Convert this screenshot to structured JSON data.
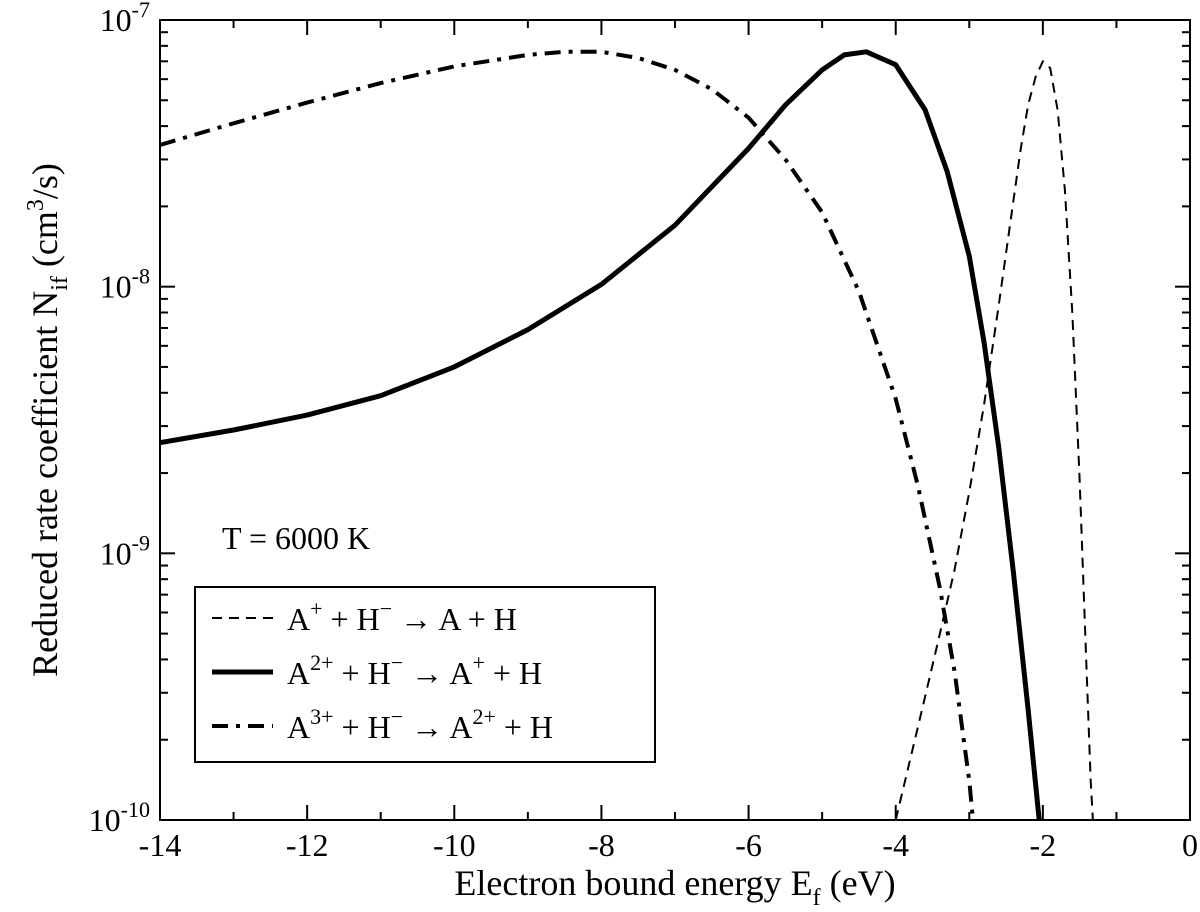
{
  "chart_data": {
    "type": "line",
    "xlabel": {
      "main": "Electron bound energy E",
      "sub": "f",
      "tail": " (eV)"
    },
    "ylabel": {
      "main": "Reduced rate coefficient N",
      "sub": "if",
      "mid": " (cm",
      "sup": "3",
      "tail": "/s)"
    },
    "annotation": "T = 6000 K",
    "xlim": [
      -14,
      0
    ],
    "ylim": [
      1e-10,
      1e-07
    ],
    "yscale": "log",
    "grid": false,
    "legend_position": "bottom-left",
    "xticks": [
      -14,
      -12,
      -10,
      -8,
      -6,
      -4,
      -2,
      0
    ],
    "xtick_labels": [
      "-14",
      "-12",
      "-10",
      "-8",
      "-6",
      "-4",
      "-2",
      "0"
    ],
    "yticks": [
      {
        "value": 1e-10,
        "base": "10",
        "exp": "-10"
      },
      {
        "value": 1e-09,
        "base": "10",
        "exp": "-9"
      },
      {
        "value": 1e-08,
        "base": "10",
        "exp": "-8"
      },
      {
        "value": 1e-07,
        "base": "10",
        "exp": "-7"
      }
    ],
    "series": [
      {
        "legend": [
          "A",
          "+",
          " + H",
          "−",
          " → A + H"
        ],
        "style": "dashed",
        "x": [
          -4.0,
          -3.8,
          -3.6,
          -3.4,
          -3.2,
          -3.0,
          -2.8,
          -2.6,
          -2.4,
          -2.3,
          -2.2,
          -2.1,
          -2.0,
          -1.9,
          -1.8,
          -1.7,
          -1.6,
          -1.5,
          -1.4,
          -1.35,
          -1.32
        ],
        "y": [
          1e-10,
          1.7e-10,
          2.9e-10,
          5e-10,
          8.7e-10,
          1.7e-09,
          3.6e-09,
          8.5e-09,
          2.1e-08,
          3.3e-08,
          4.8e-08,
          6.1e-08,
          7e-08,
          6.6e-08,
          4.6e-08,
          2.3e-08,
          8e-09,
          1.9e-09,
          3.3e-10,
          1.4e-10,
          1e-10
        ]
      },
      {
        "legend": [
          "A",
          "2+",
          " + H",
          "−",
          " → A",
          "+",
          " + H"
        ],
        "style": "solid",
        "x": [
          -14,
          -13,
          -12,
          -11,
          -10,
          -9,
          -8,
          -7,
          -6,
          -5.5,
          -5,
          -4.7,
          -4.4,
          -4.0,
          -3.6,
          -3.3,
          -3.0,
          -2.8,
          -2.6,
          -2.4,
          -2.2,
          -2.05
        ],
        "y": [
          2.6e-09,
          2.9e-09,
          3.3e-09,
          3.9e-09,
          5e-09,
          6.9e-09,
          1.02e-08,
          1.7e-08,
          3.3e-08,
          4.8e-08,
          6.5e-08,
          7.4e-08,
          7.6e-08,
          6.8e-08,
          4.6e-08,
          2.7e-08,
          1.3e-08,
          6.2e-09,
          2.5e-09,
          8.5e-10,
          2.6e-10,
          1e-10
        ]
      },
      {
        "legend": [
          "A",
          "3+",
          " + H",
          "−",
          " → A",
          "2+",
          " + H"
        ],
        "style": "dash-dot",
        "x": [
          -14,
          -13,
          -12,
          -11,
          -10,
          -9,
          -8.5,
          -8,
          -7.5,
          -7,
          -6.5,
          -6,
          -5.5,
          -5,
          -4.5,
          -4,
          -3.7,
          -3.4,
          -3.2,
          -3.0,
          -2.95
        ],
        "y": [
          3.4e-08,
          4.1e-08,
          4.9e-08,
          5.8e-08,
          6.7e-08,
          7.4e-08,
          7.6e-08,
          7.6e-08,
          7.2e-08,
          6.5e-08,
          5.5e-08,
          4.3e-08,
          3e-08,
          1.9e-08,
          9.6e-09,
          3.8e-09,
          1.8e-09,
          7.4e-10,
          3.6e-10,
          1.4e-10,
          1e-10
        ]
      }
    ]
  }
}
